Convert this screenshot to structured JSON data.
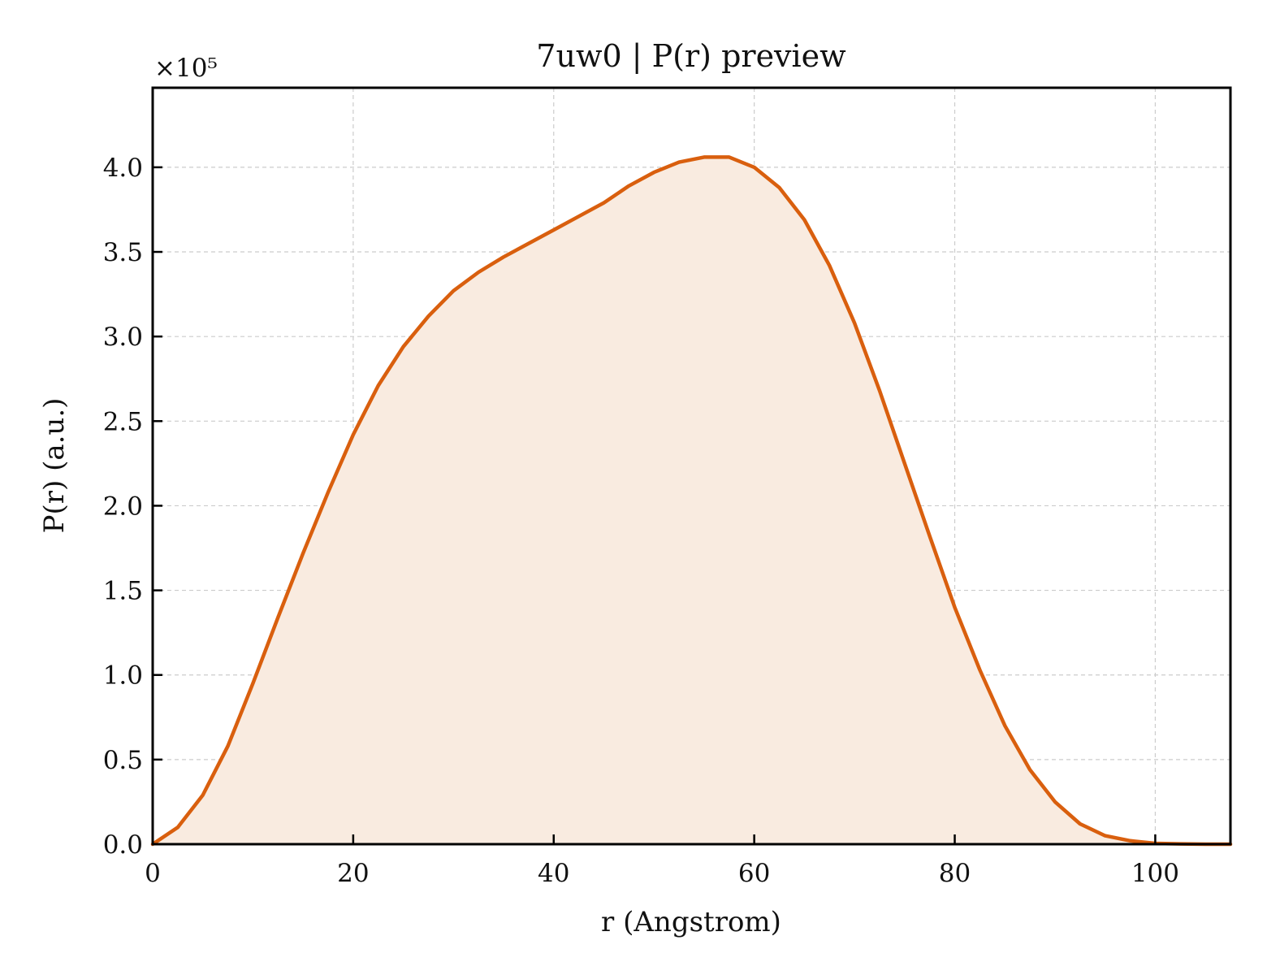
{
  "chart_data": {
    "type": "area",
    "title": "7uw0 | P(r) preview",
    "xlabel": "r (Angstrom)",
    "ylabel": "P(r) (a.u.)",
    "y_offset_label": "×10⁵",
    "xlim": [
      0,
      107.5
    ],
    "ylim": [
      0,
      4.47
    ],
    "y_scale_factor": 100000,
    "x_ticks": [
      0,
      20,
      40,
      60,
      80,
      100
    ],
    "x_tick_labels": [
      "0",
      "20",
      "40",
      "60",
      "80",
      "100"
    ],
    "y_ticks": [
      0.0,
      0.5,
      1.0,
      1.5,
      2.0,
      2.5,
      3.0,
      3.5,
      4.0
    ],
    "y_tick_labels": [
      "0.0",
      "0.5",
      "1.0",
      "1.5",
      "2.0",
      "2.5",
      "3.0",
      "3.5",
      "4.0"
    ],
    "grid": true,
    "legend": "none",
    "colors": {
      "line": "#d95f0e",
      "fill": "#f9ebe0",
      "grid": "#cccccc",
      "axes": "#000000"
    },
    "series": [
      {
        "x": [
          0,
          2.5,
          5,
          7.5,
          10,
          12.5,
          15,
          17.5,
          20,
          22.5,
          25,
          27.5,
          30,
          32.5,
          35,
          37.5,
          40,
          42.5,
          45,
          47.5,
          50,
          52.5,
          55,
          57.5,
          60,
          62.5,
          65,
          67.5,
          70,
          72.5,
          75,
          77.5,
          80,
          82.5,
          85,
          87.5,
          90,
          92.5,
          95,
          97.5,
          100,
          102.5,
          105,
          107.5
        ],
        "y": [
          0.0,
          0.1,
          0.29,
          0.58,
          0.95,
          1.34,
          1.72,
          2.08,
          2.42,
          2.71,
          2.94,
          3.12,
          3.27,
          3.38,
          3.47,
          3.55,
          3.63,
          3.71,
          3.79,
          3.89,
          3.97,
          4.03,
          4.06,
          4.06,
          4.0,
          3.88,
          3.69,
          3.42,
          3.08,
          2.68,
          2.25,
          1.82,
          1.4,
          1.03,
          0.7,
          0.44,
          0.25,
          0.12,
          0.05,
          0.02,
          0.005,
          0.002,
          0.0,
          0.0
        ]
      }
    ]
  }
}
